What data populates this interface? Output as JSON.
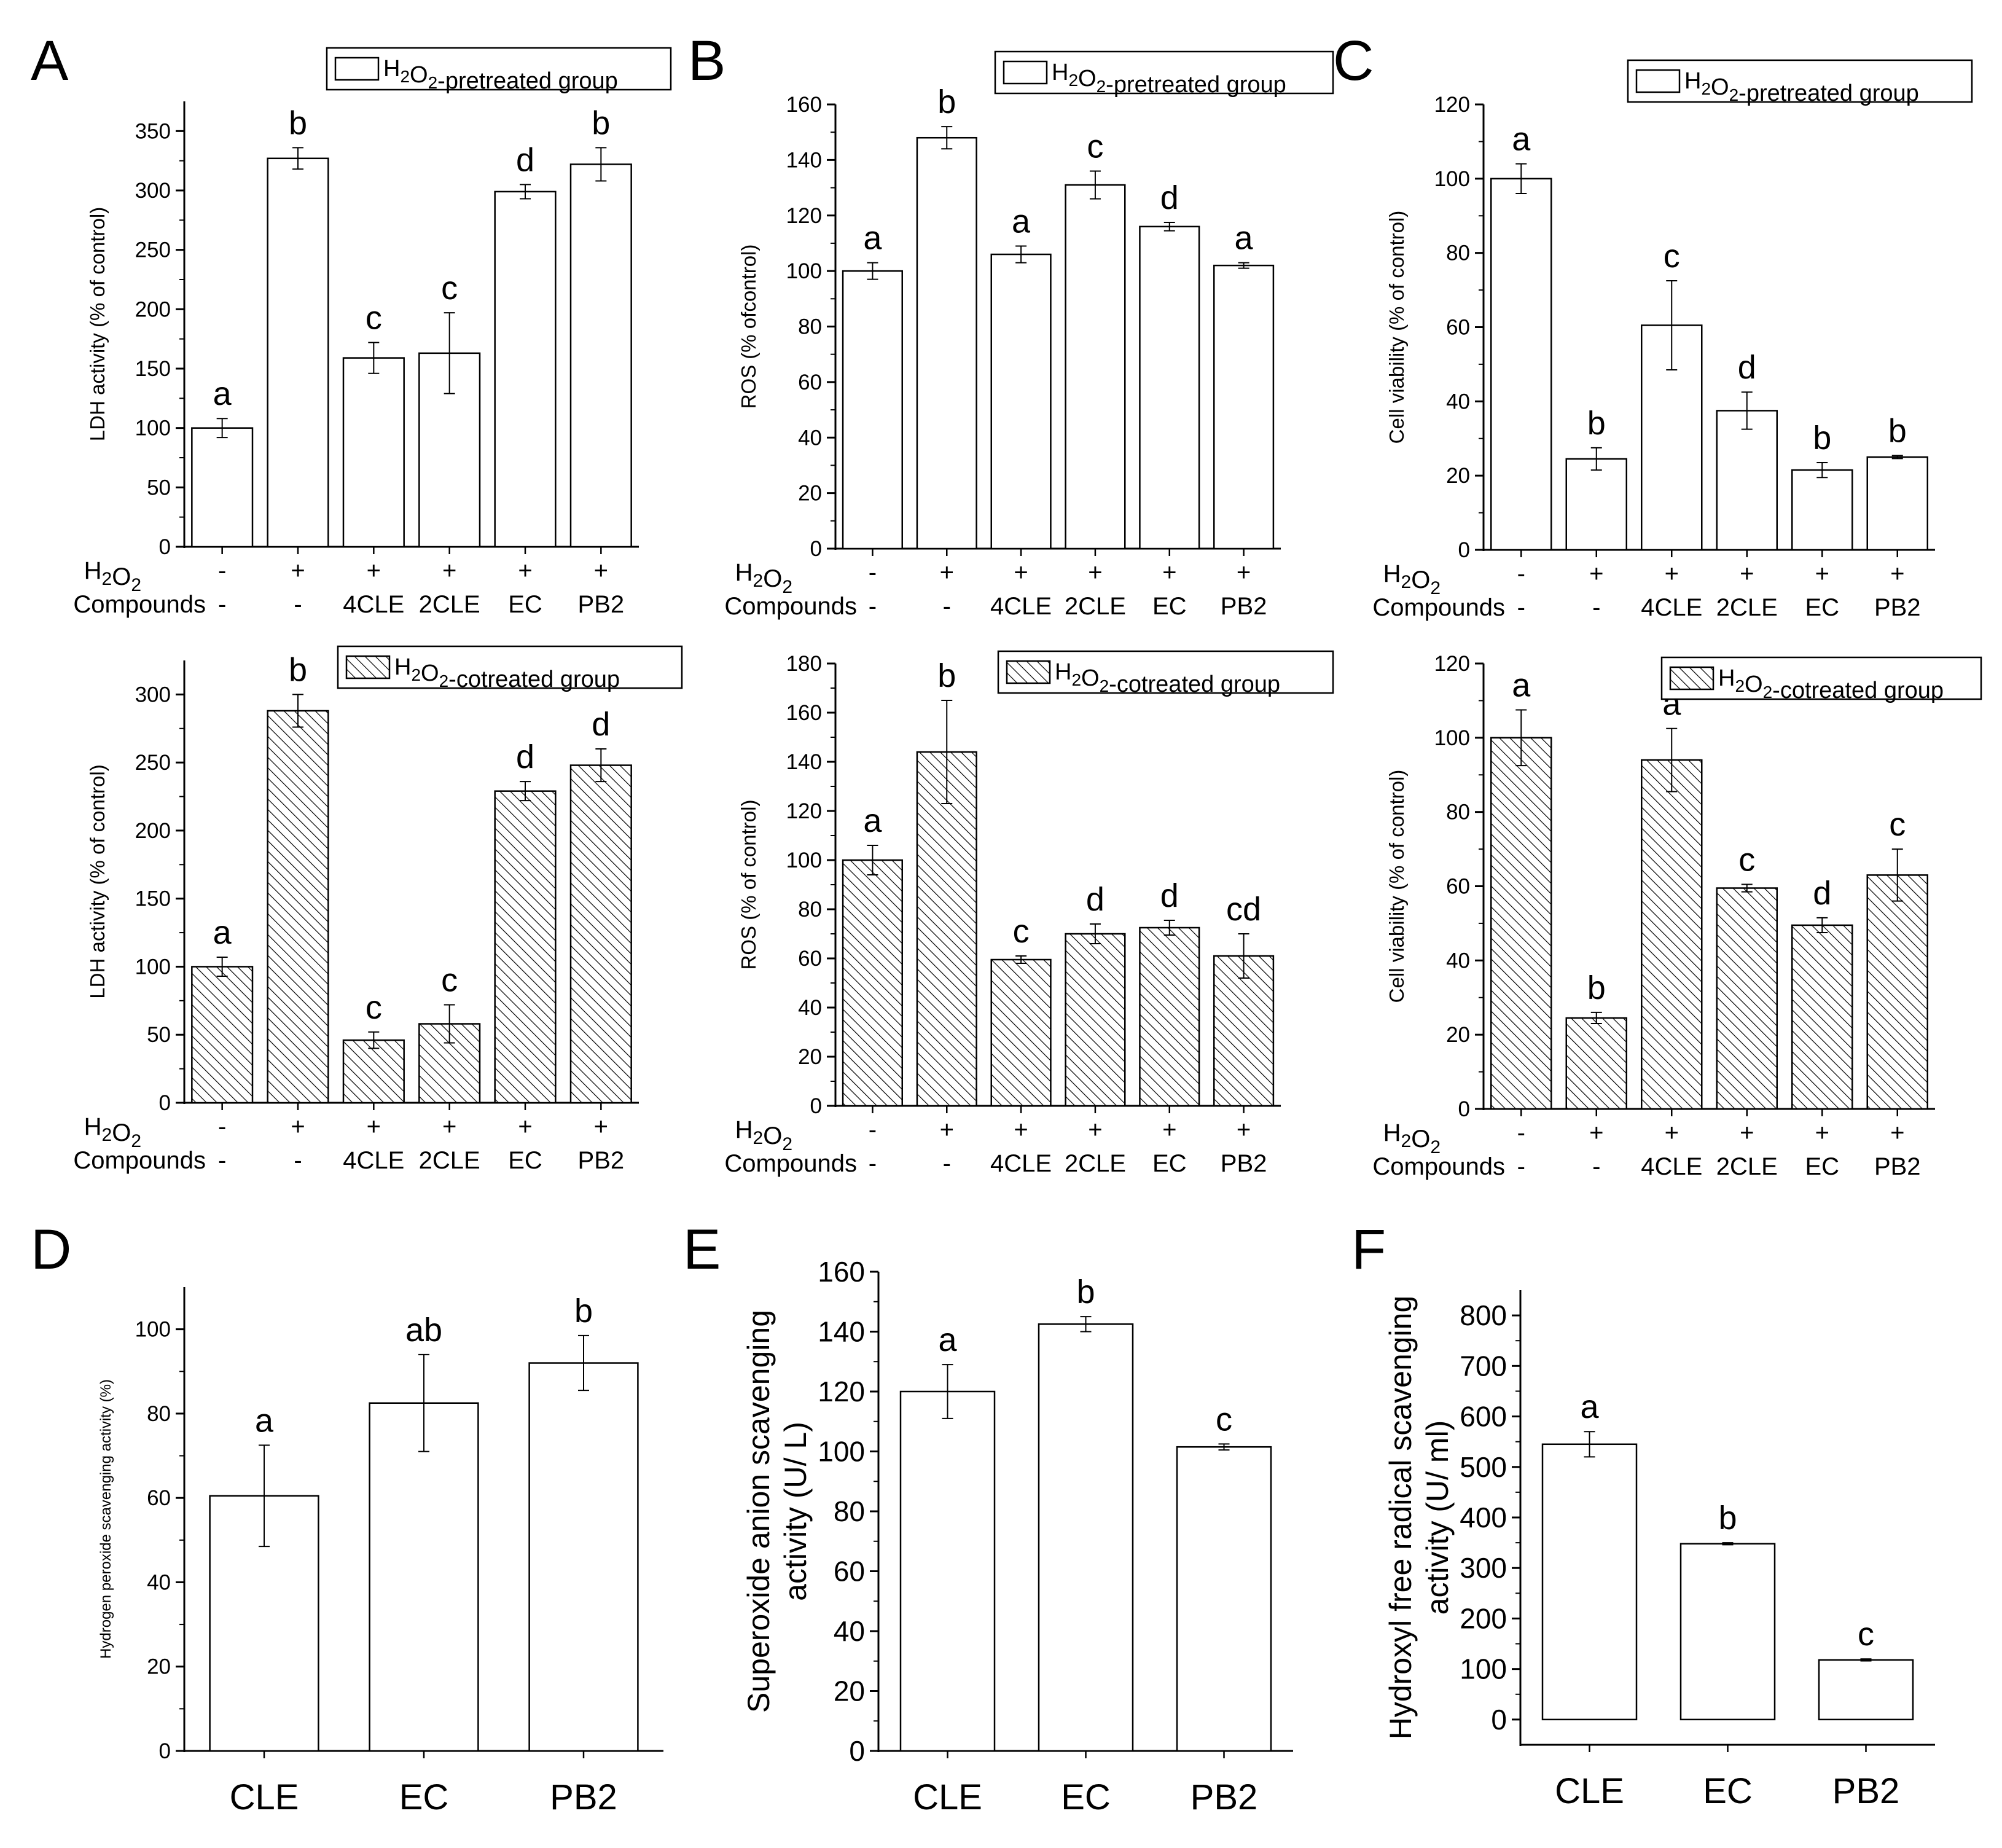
{
  "figure": {
    "conditions": {
      "h2o2_label": "H₂O₂",
      "compounds_label": "Compounds",
      "h2o2_values": [
        "-",
        "+",
        "+",
        "+",
        "+",
        "+"
      ],
      "compound_values": [
        "-",
        "-",
        "4CLE",
        "2CLE",
        "EC",
        "PB2"
      ]
    }
  },
  "chart_data": [
    {
      "id": "A-top",
      "panel": "A",
      "type": "bar",
      "pattern": "open",
      "legend": "H₂O₂-pretreated group",
      "ylabel": "LDH activity (% of control)",
      "ylim": [
        0,
        375
      ],
      "yticks": [
        0,
        50,
        100,
        150,
        200,
        250,
        300,
        350
      ],
      "categories": [
        "-/-",
        "+/-",
        "+/4CLE",
        "+/2CLE",
        "+/EC",
        "+/PB2"
      ],
      "values": [
        100,
        327,
        159,
        163,
        299,
        322
      ],
      "errors": [
        8,
        9,
        13,
        34,
        6,
        14
      ],
      "letters": [
        "a",
        "b",
        "c",
        "c",
        "d",
        "b"
      ]
    },
    {
      "id": "B-top",
      "panel": "B",
      "type": "bar",
      "pattern": "open",
      "legend": "H₂O₂-pretreated group",
      "ylabel": "ROS (% ofcontrol)",
      "ylim": [
        0,
        160
      ],
      "yticks": [
        0,
        20,
        40,
        60,
        80,
        100,
        120,
        140,
        160
      ],
      "categories": [
        "-/-",
        "+/-",
        "+/4CLE",
        "+/2CLE",
        "+/EC",
        "+/PB2"
      ],
      "values": [
        100,
        148,
        106,
        131,
        116,
        102
      ],
      "errors": [
        3,
        4,
        3,
        5,
        1.5,
        1
      ],
      "letters": [
        "a",
        "b",
        "a",
        "c",
        "d",
        "a"
      ]
    },
    {
      "id": "C-top",
      "panel": "C",
      "type": "bar",
      "pattern": "open",
      "legend": "H₂O₂-pretreated group",
      "ylabel": "Cell viability (% of control)",
      "ylim": [
        0,
        120
      ],
      "yticks": [
        0,
        20,
        40,
        60,
        80,
        100,
        120
      ],
      "categories": [
        "-/-",
        "+/-",
        "+/4CLE",
        "+/2CLE",
        "+/EC",
        "+/PB2"
      ],
      "values": [
        100,
        24.5,
        60.5,
        37.5,
        21.5,
        25
      ],
      "errors": [
        4,
        3,
        12,
        5,
        2,
        0.4
      ],
      "letters": [
        "a",
        "b",
        "c",
        "d",
        "b",
        "b"
      ]
    },
    {
      "id": "A-bottom",
      "panel": "A",
      "type": "bar",
      "pattern": "hatched",
      "legend": "H₂O₂-cotreated group",
      "ylabel": "LDH activity (% of control)",
      "ylim": [
        0,
        325
      ],
      "yticks": [
        0,
        50,
        100,
        150,
        200,
        250,
        300
      ],
      "categories": [
        "-/-",
        "+/-",
        "+/4CLE",
        "+/2CLE",
        "+/EC",
        "+/PB2"
      ],
      "values": [
        100,
        288,
        46,
        58,
        229,
        248
      ],
      "errors": [
        7,
        12,
        6,
        14,
        7,
        12
      ],
      "letters": [
        "a",
        "b",
        "c",
        "c",
        "d",
        "d"
      ]
    },
    {
      "id": "B-bottom",
      "panel": "B",
      "type": "bar",
      "pattern": "hatched",
      "legend": "H₂O₂-cotreated group",
      "ylabel": "ROS (% of control)",
      "ylim": [
        0,
        180
      ],
      "yticks": [
        0,
        20,
        40,
        60,
        80,
        100,
        120,
        140,
        160,
        180
      ],
      "categories": [
        "-/-",
        "+/-",
        "+/4CLE",
        "+/2CLE",
        "+/EC",
        "+/PB2"
      ],
      "values": [
        100,
        144,
        59.5,
        70,
        72.5,
        61
      ],
      "errors": [
        6,
        21,
        1.5,
        4,
        3,
        9
      ],
      "letters": [
        "a",
        "b",
        "c",
        "d",
        "d",
        "cd"
      ]
    },
    {
      "id": "C-bottom",
      "panel": "C",
      "type": "bar",
      "pattern": "hatched",
      "legend": "H₂O₂-cotreated group",
      "ylabel": "Cell viability (% of control)",
      "ylim": [
        0,
        120
      ],
      "yticks": [
        0,
        20,
        40,
        60,
        80,
        100,
        120
      ],
      "categories": [
        "-/-",
        "+/-",
        "+/4CLE",
        "+/2CLE",
        "+/EC",
        "+/PB2"
      ],
      "values": [
        100,
        24.5,
        94,
        59.5,
        49.5,
        63
      ],
      "errors": [
        7.5,
        1.5,
        8.5,
        1,
        2,
        7
      ],
      "letters": [
        "a",
        "b",
        "a",
        "c",
        "d",
        "c"
      ]
    },
    {
      "id": "D",
      "panel": "D",
      "type": "bar",
      "pattern": "open",
      "ylabel": "Hydrogen peroxide scavenging activity (%)",
      "ylim": [
        0,
        110
      ],
      "yticks": [
        0,
        20,
        40,
        60,
        80,
        100
      ],
      "categories": [
        "CLE",
        "EC",
        "PB2"
      ],
      "values": [
        60.5,
        82.5,
        92
      ],
      "errors": [
        12,
        11.5,
        6.5
      ],
      "letters": [
        "a",
        "ab",
        "b"
      ]
    },
    {
      "id": "E",
      "panel": "E",
      "type": "bar",
      "pattern": "open",
      "ylabel": "Superoxide anion scavenging activity (U/ L)",
      "ylim": [
        0,
        160
      ],
      "yticks": [
        0,
        20,
        40,
        60,
        80,
        100,
        120,
        140,
        160
      ],
      "categories": [
        "CLE",
        "EC",
        "PB2"
      ],
      "values": [
        120,
        142.5,
        101.5
      ],
      "errors": [
        9,
        2.5,
        1
      ],
      "letters": [
        "a",
        "b",
        "c"
      ]
    },
    {
      "id": "F",
      "panel": "F",
      "type": "bar",
      "pattern": "open",
      "ylabel": "Hydroxyl free radical scavenging activity (U/ ml)",
      "ylim": [
        -50,
        850
      ],
      "yticks": [
        0,
        100,
        200,
        300,
        400,
        500,
        600,
        700,
        800
      ],
      "categories": [
        "CLE",
        "EC",
        "PB2"
      ],
      "values": [
        545,
        348,
        118
      ],
      "errors": [
        25,
        2,
        2
      ],
      "letters": [
        "a",
        "b",
        "c"
      ]
    }
  ]
}
